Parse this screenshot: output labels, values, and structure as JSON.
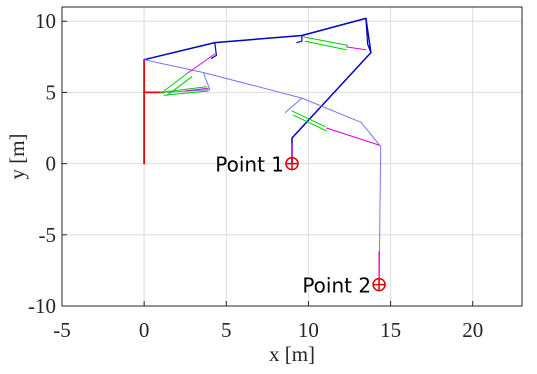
{
  "chart_data": {
    "type": "line",
    "xlabel": "x [m]",
    "ylabel": "y [m]",
    "xlim": [
      -5,
      23
    ],
    "ylim": [
      -10,
      11
    ],
    "xticks": [
      -5,
      0,
      5,
      10,
      15,
      20
    ],
    "yticks": [
      -10,
      -5,
      0,
      5,
      10
    ],
    "xtick_labels": [
      "-5",
      "0",
      "5",
      "10",
      "15",
      "20"
    ],
    "ytick_labels": [
      "-10",
      "-5",
      "0",
      "5",
      "10"
    ],
    "grid": true,
    "colors": {
      "primary": "#0000cc",
      "secondary": "#7777ee",
      "base": "#ee0000",
      "actuator": "#00cc00",
      "rod": "#dd00dd",
      "target": "#dd0000",
      "grid": "#dddddd",
      "axis": "#262626"
    },
    "series": [
      {
        "role": "base",
        "color": "#ee0000",
        "width": 1.8,
        "points": [
          [
            0,
            0
          ],
          [
            0,
            7.3
          ]
        ]
      },
      {
        "role": "base",
        "color": "#ee0000",
        "width": 1.8,
        "points": [
          [
            0,
            5
          ],
          [
            1.2,
            5
          ]
        ]
      },
      {
        "role": "primary",
        "color": "#0000cc",
        "width": 1.5,
        "points": [
          [
            0,
            7.3
          ],
          [
            4.3,
            8.5
          ],
          [
            9.6,
            9.0
          ],
          [
            13.5,
            10.2
          ],
          [
            13.8,
            7.8
          ],
          [
            9.0,
            1.8
          ],
          [
            9.0,
            0
          ]
        ]
      },
      {
        "role": "primary",
        "color": "#0000cc",
        "width": 1.2,
        "points": [
          [
            4.3,
            8.5
          ],
          [
            4.4,
            7.6
          ],
          [
            4.1,
            7.4
          ]
        ]
      },
      {
        "role": "primary",
        "color": "#0000cc",
        "width": 1.2,
        "points": [
          [
            9.6,
            9.0
          ],
          [
            9.6,
            8.6
          ],
          [
            9.3,
            8.5
          ]
        ]
      },
      {
        "role": "primary",
        "color": "#0000cc",
        "width": 1.2,
        "points": [
          [
            13.5,
            10.2
          ],
          [
            13.6,
            8.4
          ],
          [
            13.8,
            7.8
          ]
        ]
      },
      {
        "role": "secondary",
        "color": "#7777ee",
        "width": 1.0,
        "points": [
          [
            0,
            7.3
          ],
          [
            3.6,
            6.4
          ],
          [
            9.6,
            4.6
          ],
          [
            13.2,
            2.9
          ],
          [
            14.4,
            1.2
          ],
          [
            14.3,
            -8.5
          ]
        ]
      },
      {
        "role": "secondary",
        "color": "#7777ee",
        "width": 1.0,
        "points": [
          [
            9.6,
            4.6
          ],
          [
            8.6,
            3.6
          ]
        ]
      },
      {
        "role": "secondary",
        "color": "#7777ee",
        "width": 1.0,
        "points": [
          [
            3.6,
            6.4
          ],
          [
            4.0,
            5.2
          ],
          [
            1.4,
            5.0
          ]
        ]
      },
      {
        "role": "actuator",
        "color": "#00cc00",
        "width": 1.0,
        "points": [
          [
            1.2,
            5.1
          ],
          [
            2.7,
            6.4
          ]
        ]
      },
      {
        "role": "actuator",
        "color": "#00cc00",
        "width": 1.0,
        "points": [
          [
            1.4,
            4.8
          ],
          [
            2.9,
            6.1
          ]
        ]
      },
      {
        "role": "actuator",
        "color": "#00cc00",
        "width": 1.0,
        "points": [
          [
            1.0,
            5.0
          ],
          [
            3.8,
            5.4
          ]
        ]
      },
      {
        "role": "actuator",
        "color": "#00cc00",
        "width": 1.0,
        "points": [
          [
            1.2,
            4.8
          ],
          [
            3.9,
            5.1
          ]
        ]
      },
      {
        "role": "actuator",
        "color": "#00cc00",
        "width": 1.0,
        "points": [
          [
            9.7,
            8.9
          ],
          [
            12.4,
            8.3
          ]
        ]
      },
      {
        "role": "actuator",
        "color": "#00cc00",
        "width": 1.0,
        "points": [
          [
            9.8,
            8.6
          ],
          [
            12.3,
            8.0
          ]
        ]
      },
      {
        "role": "actuator",
        "color": "#00cc00",
        "width": 1.0,
        "points": [
          [
            9.0,
            3.7
          ],
          [
            11.0,
            2.6
          ]
        ]
      },
      {
        "role": "actuator",
        "color": "#00cc00",
        "width": 1.0,
        "points": [
          [
            9.1,
            3.4
          ],
          [
            11.1,
            2.3
          ]
        ]
      },
      {
        "role": "rod",
        "color": "#dd00dd",
        "width": 1.0,
        "points": [
          [
            2.7,
            6.4
          ],
          [
            4.3,
            7.7
          ]
        ]
      },
      {
        "role": "rod",
        "color": "#dd00dd",
        "width": 1.0,
        "points": [
          [
            2.5,
            5.1
          ],
          [
            3.9,
            5.3
          ]
        ]
      },
      {
        "role": "rod",
        "color": "#dd00dd",
        "width": 1.0,
        "points": [
          [
            12.3,
            8.2
          ],
          [
            13.5,
            8.0
          ]
        ]
      },
      {
        "role": "rod",
        "color": "#dd00dd",
        "width": 1.0,
        "points": [
          [
            11.1,
            2.5
          ],
          [
            14.3,
            1.3
          ]
        ]
      },
      {
        "role": "rod",
        "color": "#dd00dd",
        "width": 1.2,
        "points": [
          [
            9.0,
            1.4
          ],
          [
            9.0,
            0
          ]
        ]
      },
      {
        "role": "rod",
        "color": "#dd00dd",
        "width": 1.2,
        "points": [
          [
            14.3,
            -6.2
          ],
          [
            14.3,
            -8.5
          ]
        ]
      }
    ],
    "markers": [
      {
        "label": "Point 1",
        "x": 9.0,
        "y": 0.0,
        "color": "#dd0000"
      },
      {
        "label": "Point 2",
        "x": 14.3,
        "y": -8.5,
        "color": "#dd0000"
      }
    ]
  }
}
